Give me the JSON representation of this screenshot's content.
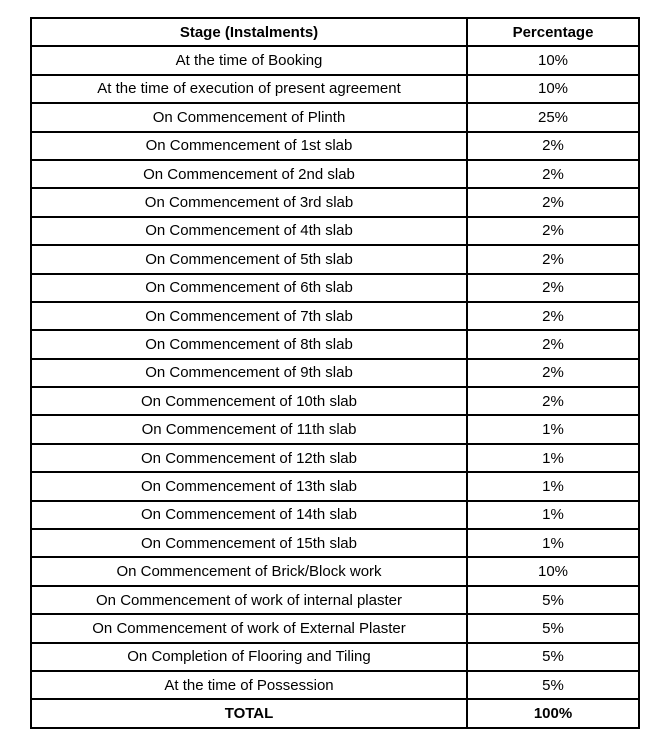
{
  "table": {
    "columns": [
      {
        "label": "Stage (Instalments)"
      },
      {
        "label": "Percentage"
      }
    ],
    "rows": [
      {
        "stage": "At the time of Booking",
        "percentage": "10%"
      },
      {
        "stage": "At the time of execution of present agreement",
        "percentage": "10%"
      },
      {
        "stage": "On Commencement of Plinth",
        "percentage": "25%"
      },
      {
        "stage": "On Commencement of 1st slab",
        "percentage": "2%"
      },
      {
        "stage": "On Commencement of 2nd slab",
        "percentage": "2%"
      },
      {
        "stage": "On Commencement of 3rd slab",
        "percentage": "2%"
      },
      {
        "stage": "On Commencement of 4th slab",
        "percentage": "2%"
      },
      {
        "stage": "On Commencement of 5th slab",
        "percentage": "2%"
      },
      {
        "stage": "On Commencement of 6th slab",
        "percentage": "2%"
      },
      {
        "stage": "On Commencement of 7th slab",
        "percentage": "2%"
      },
      {
        "stage": "On Commencement of 8th slab",
        "percentage": "2%"
      },
      {
        "stage": "On Commencement of 9th slab",
        "percentage": "2%"
      },
      {
        "stage": "On Commencement of 10th slab",
        "percentage": "2%"
      },
      {
        "stage": "On Commencement of 11th slab",
        "percentage": "1%"
      },
      {
        "stage": "On Commencement of 12th slab",
        "percentage": "1%"
      },
      {
        "stage": "On Commencement of 13th slab",
        "percentage": "1%"
      },
      {
        "stage": "On Commencement of 14th slab",
        "percentage": "1%"
      },
      {
        "stage": "On Commencement of 15th slab",
        "percentage": "1%"
      },
      {
        "stage": "On Commencement of Brick/Block work",
        "percentage": "10%"
      },
      {
        "stage": "On Commencement of work of internal plaster",
        "percentage": "5%"
      },
      {
        "stage": "On Commencement of work of External Plaster",
        "percentage": "5%"
      },
      {
        "stage": "On Completion of Flooring and Tiling",
        "percentage": "5%"
      },
      {
        "stage": "At the time of Possession",
        "percentage": "5%"
      }
    ],
    "total_row": {
      "stage": "TOTAL",
      "percentage": "100%"
    }
  },
  "colors": {
    "border": "#000000",
    "text": "#000000",
    "background": "#ffffff"
  }
}
